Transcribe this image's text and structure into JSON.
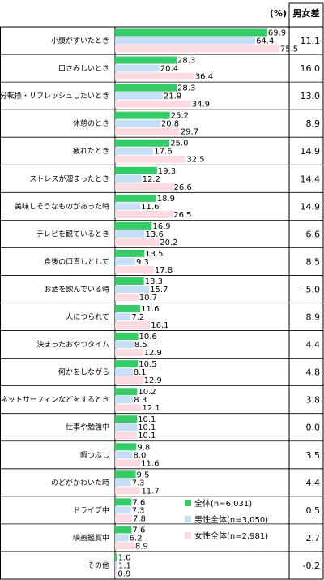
{
  "chart_data": {
    "type": "bar",
    "orientation": "horizontal",
    "unit_label": "(%)",
    "diff_header": "男女差",
    "xlim": [
      0,
      80
    ],
    "categories": [
      "小腹がすいたとき",
      "口さみしいとき",
      "気分転換・リフレッシュしたいとき",
      "休憩のとき",
      "疲れたとき",
      "ストレスが溜まったとき",
      "美味しそうなものがあった時",
      "テレビを観ているとき",
      "食後の口直しとして",
      "お酒を飲んでいる時",
      "人につられて",
      "決まったおやつタイム",
      "何かをしながら",
      "ネットサーフィンなどをするとき",
      "仕事や勉強中",
      "暇つぶし",
      "のどがかわいた時",
      "ドライブ中",
      "映画鑑賞中",
      "その他"
    ],
    "series": [
      {
        "name": "全体(n=6,031)",
        "color": "#33cc66",
        "values": [
          69.9,
          28.3,
          28.3,
          25.2,
          25.0,
          19.3,
          18.9,
          16.9,
          13.5,
          13.3,
          11.6,
          10.6,
          10.5,
          10.2,
          10.1,
          9.8,
          9.5,
          7.6,
          7.6,
          1.0
        ]
      },
      {
        "name": "男性全体(n=3,050)",
        "color": "#c6dff7",
        "values": [
          64.4,
          20.4,
          21.9,
          20.8,
          17.6,
          12.2,
          11.6,
          13.6,
          9.3,
          15.7,
          7.2,
          8.5,
          8.1,
          8.3,
          10.1,
          8.0,
          7.3,
          7.3,
          6.2,
          1.1
        ]
      },
      {
        "name": "女性全体(n=2,981)",
        "color": "#fcdbe0",
        "values": [
          75.5,
          36.4,
          34.9,
          29.7,
          32.5,
          26.6,
          26.5,
          20.2,
          17.8,
          10.7,
          16.1,
          12.9,
          12.9,
          12.1,
          10.1,
          11.6,
          11.7,
          7.8,
          8.9,
          0.9
        ]
      }
    ],
    "diff_values": [
      "11.1",
      "16.0",
      "13.0",
      "8.9",
      "14.9",
      "14.4",
      "14.9",
      "6.6",
      "8.5",
      "-5.0",
      "8.9",
      "4.4",
      "4.8",
      "3.8",
      "0.0",
      "3.5",
      "4.4",
      "0.5",
      "2.7",
      "-0.2"
    ],
    "legend_position": "lower-right inside plot"
  }
}
